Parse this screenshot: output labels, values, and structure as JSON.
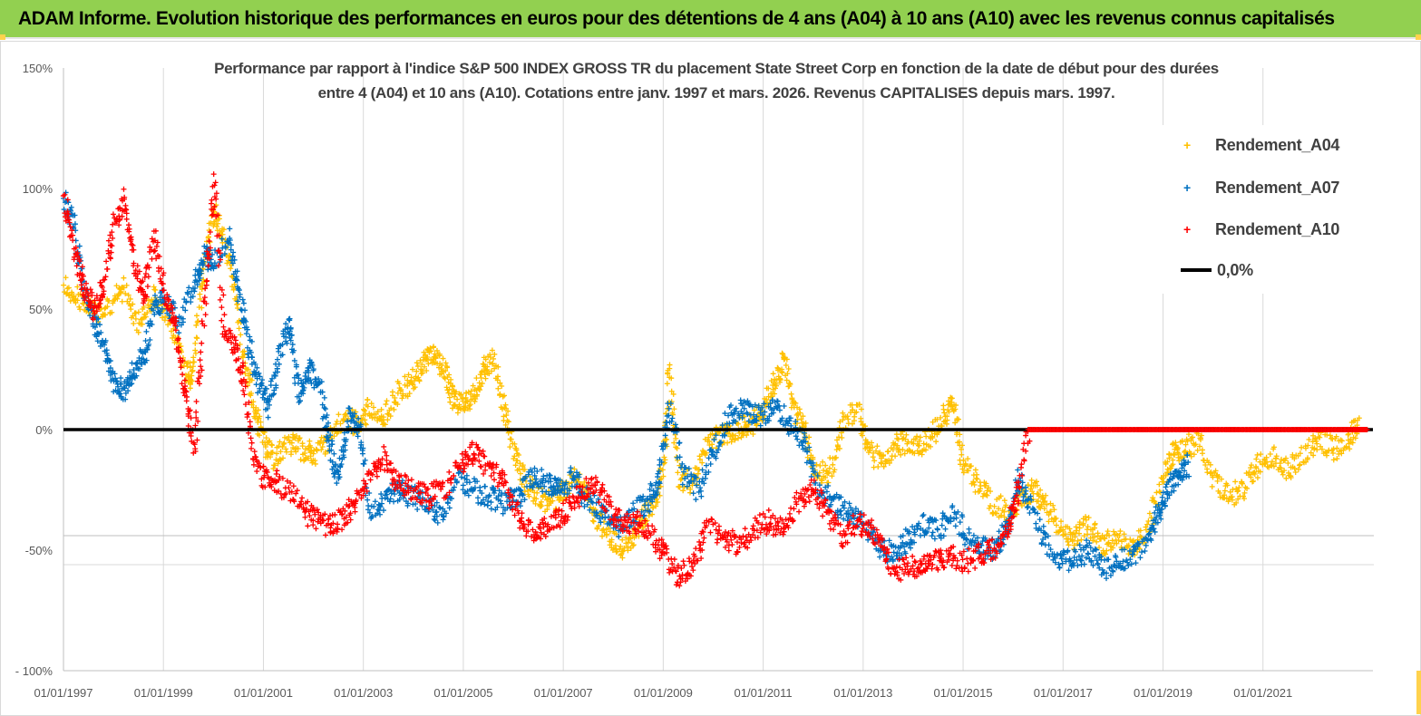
{
  "header": {
    "title": "ADAM Informe. Evolution historique des performances en euros pour des détentions de 4 ans (A04) à 10 ans (A10) avec les revenus connus capitalisés"
  },
  "colors": {
    "header_bg": "#92d050",
    "A04": "#ffc000",
    "A07": "#0070c0",
    "A10": "#ff0000",
    "zero_line": "#000000"
  },
  "chart_data": {
    "type": "scatter",
    "title_line1": "Performance par rapport à l'indice S&P 500 INDEX GROSS TR  du placement State Street Corp en fonction de la date de début pour des durées",
    "title_line2": "entre 4 (A04) et 10 ans (A10). Cotations entre janv. 1997 et mars. 2026. Revenus CAPITALISES depuis mars. 1997.",
    "ylim": [
      -100,
      150
    ],
    "y_ticks": [
      "150%",
      "100%",
      "50%",
      "0%",
      "-50%",
      "- 100%"
    ],
    "y_tick_values": [
      150,
      100,
      50,
      0,
      -50,
      -100
    ],
    "x_ticks": [
      "01/01/1997",
      "01/01/1999",
      "01/01/2001",
      "01/01/2003",
      "01/01/2005",
      "01/01/2007",
      "01/01/2009",
      "01/01/2011",
      "01/01/2013",
      "01/01/2015",
      "01/01/2017",
      "01/01/2019",
      "01/01/2021"
    ],
    "x_tick_years": [
      1997,
      1999,
      2001,
      2003,
      2005,
      2007,
      2009,
      2011,
      2013,
      2015,
      2017,
      2019,
      2021
    ],
    "xlim": [
      1997.0,
      2023.2
    ],
    "grid": true,
    "legend_position": "top-right",
    "series": [
      {
        "name": "Rendement_A04",
        "key": "A04",
        "points": [
          [
            1997.0,
            60
          ],
          [
            1997.3,
            55
          ],
          [
            1997.6,
            48
          ],
          [
            1997.9,
            52
          ],
          [
            1998.2,
            58
          ],
          [
            1998.5,
            45
          ],
          [
            1998.8,
            55
          ],
          [
            1999.1,
            48
          ],
          [
            1999.3,
            35
          ],
          [
            1999.5,
            20
          ],
          [
            1999.6,
            30
          ],
          [
            1999.8,
            70
          ],
          [
            2000.0,
            90
          ],
          [
            2000.2,
            80
          ],
          [
            2000.4,
            60
          ],
          [
            2000.6,
            30
          ],
          [
            2000.8,
            10
          ],
          [
            2001.0,
            -5
          ],
          [
            2001.2,
            -12
          ],
          [
            2001.5,
            -5
          ],
          [
            2001.8,
            -8
          ],
          [
            2002.0,
            -10
          ],
          [
            2002.3,
            -5
          ],
          [
            2002.6,
            5
          ],
          [
            2002.9,
            2
          ],
          [
            2003.1,
            8
          ],
          [
            2003.4,
            5
          ],
          [
            2003.7,
            15
          ],
          [
            2004.0,
            20
          ],
          [
            2004.2,
            28
          ],
          [
            2004.4,
            32
          ],
          [
            2004.6,
            25
          ],
          [
            2004.8,
            12
          ],
          [
            2005.0,
            10
          ],
          [
            2005.2,
            15
          ],
          [
            2005.4,
            25
          ],
          [
            2005.6,
            30
          ],
          [
            2005.8,
            10
          ],
          [
            2006.0,
            -10
          ],
          [
            2006.2,
            -20
          ],
          [
            2006.5,
            -28
          ],
          [
            2006.8,
            -30
          ],
          [
            2007.0,
            -25
          ],
          [
            2007.3,
            -20
          ],
          [
            2007.6,
            -35
          ],
          [
            2007.9,
            -45
          ],
          [
            2008.2,
            -50
          ],
          [
            2008.5,
            -40
          ],
          [
            2008.8,
            -30
          ],
          [
            2009.0,
            -15
          ],
          [
            2009.1,
            25
          ],
          [
            2009.3,
            -20
          ],
          [
            2009.6,
            -22
          ],
          [
            2009.9,
            -5
          ],
          [
            2010.2,
            -2
          ],
          [
            2010.5,
            0
          ],
          [
            2010.8,
            3
          ],
          [
            2011.0,
            8
          ],
          [
            2011.2,
            18
          ],
          [
            2011.4,
            28
          ],
          [
            2011.6,
            10
          ],
          [
            2011.8,
            0
          ],
          [
            2012.0,
            -15
          ],
          [
            2012.3,
            -20
          ],
          [
            2012.6,
            5
          ],
          [
            2012.9,
            8
          ],
          [
            2013.1,
            -10
          ],
          [
            2013.4,
            -12
          ],
          [
            2013.7,
            -5
          ],
          [
            2014.0,
            -8
          ],
          [
            2014.3,
            -5
          ],
          [
            2014.6,
            5
          ],
          [
            2014.8,
            10
          ],
          [
            2015.0,
            -15
          ],
          [
            2015.3,
            -22
          ],
          [
            2015.6,
            -30
          ],
          [
            2015.9,
            -35
          ],
          [
            2016.2,
            -28
          ],
          [
            2016.4,
            -25
          ],
          [
            2016.6,
            -30
          ],
          [
            2016.9,
            -40
          ],
          [
            2017.2,
            -45
          ],
          [
            2017.5,
            -40
          ],
          [
            2017.8,
            -48
          ],
          [
            2018.1,
            -45
          ],
          [
            2018.4,
            -50
          ],
          [
            2018.7,
            -40
          ],
          [
            2019.0,
            -20
          ],
          [
            2019.2,
            -10
          ],
          [
            2019.4,
            -8
          ],
          [
            2019.7,
            -5
          ],
          [
            2020.0,
            -20
          ],
          [
            2020.3,
            -28
          ],
          [
            2020.6,
            -25
          ],
          [
            2020.9,
            -15
          ],
          [
            2021.2,
            -10
          ],
          [
            2021.5,
            -18
          ],
          [
            2021.8,
            -10
          ],
          [
            2022.1,
            -5
          ],
          [
            2022.4,
            -8
          ],
          [
            2022.7,
            -5
          ],
          [
            2022.9,
            2
          ]
        ]
      },
      {
        "name": "Rendement_A07",
        "key": "A07",
        "points": [
          [
            1997.0,
            95
          ],
          [
            1997.2,
            85
          ],
          [
            1997.4,
            60
          ],
          [
            1997.6,
            45
          ],
          [
            1997.8,
            35
          ],
          [
            1998.0,
            20
          ],
          [
            1998.2,
            15
          ],
          [
            1998.4,
            25
          ],
          [
            1998.6,
            30
          ],
          [
            1998.8,
            50
          ],
          [
            1999.0,
            55
          ],
          [
            1999.3,
            45
          ],
          [
            1999.6,
            60
          ],
          [
            1999.8,
            72
          ],
          [
            2000.0,
            70
          ],
          [
            2000.3,
            80
          ],
          [
            2000.5,
            55
          ],
          [
            2000.7,
            35
          ],
          [
            2000.9,
            20
          ],
          [
            2001.1,
            10
          ],
          [
            2001.3,
            30
          ],
          [
            2001.5,
            45
          ],
          [
            2001.7,
            15
          ],
          [
            2001.9,
            25
          ],
          [
            2002.1,
            20
          ],
          [
            2002.3,
            -5
          ],
          [
            2002.5,
            -20
          ],
          [
            2002.7,
            5
          ],
          [
            2002.9,
            2
          ],
          [
            2003.1,
            -35
          ],
          [
            2003.4,
            -30
          ],
          [
            2003.7,
            -25
          ],
          [
            2004.0,
            -28
          ],
          [
            2004.3,
            -32
          ],
          [
            2004.6,
            -35
          ],
          [
            2004.9,
            -20
          ],
          [
            2005.2,
            -25
          ],
          [
            2005.5,
            -28
          ],
          [
            2005.8,
            -30
          ],
          [
            2006.1,
            -28
          ],
          [
            2006.4,
            -20
          ],
          [
            2006.7,
            -22
          ],
          [
            2006.9,
            -25
          ],
          [
            2007.2,
            -20
          ],
          [
            2007.5,
            -30
          ],
          [
            2007.8,
            -35
          ],
          [
            2008.1,
            -40
          ],
          [
            2008.4,
            -35
          ],
          [
            2008.7,
            -30
          ],
          [
            2008.9,
            -20
          ],
          [
            2009.1,
            10
          ],
          [
            2009.4,
            -18
          ],
          [
            2009.7,
            -25
          ],
          [
            2010.0,
            -10
          ],
          [
            2010.3,
            5
          ],
          [
            2010.6,
            8
          ],
          [
            2010.9,
            5
          ],
          [
            2011.2,
            10
          ],
          [
            2011.5,
            3
          ],
          [
            2011.8,
            -5
          ],
          [
            2012.1,
            -25
          ],
          [
            2012.4,
            -30
          ],
          [
            2012.7,
            -35
          ],
          [
            2013.0,
            -40
          ],
          [
            2013.3,
            -48
          ],
          [
            2013.6,
            -52
          ],
          [
            2013.9,
            -45
          ],
          [
            2014.2,
            -40
          ],
          [
            2014.5,
            -42
          ],
          [
            2014.8,
            -35
          ],
          [
            2015.1,
            -45
          ],
          [
            2015.4,
            -50
          ],
          [
            2015.7,
            -48
          ],
          [
            2015.9,
            -40
          ],
          [
            2016.1,
            -20
          ],
          [
            2016.3,
            -30
          ],
          [
            2016.6,
            -45
          ],
          [
            2016.9,
            -52
          ],
          [
            2017.2,
            -55
          ],
          [
            2017.5,
            -50
          ],
          [
            2017.8,
            -58
          ],
          [
            2018.1,
            -55
          ],
          [
            2018.4,
            -52
          ],
          [
            2018.7,
            -45
          ],
          [
            2018.9,
            -35
          ],
          [
            2019.1,
            -25
          ],
          [
            2019.3,
            -18
          ],
          [
            2019.5,
            -15
          ]
        ]
      },
      {
        "name": "Rendement_A10",
        "key": "A10",
        "points": [
          [
            1997.0,
            98
          ],
          [
            1997.2,
            75
          ],
          [
            1997.4,
            60
          ],
          [
            1997.6,
            50
          ],
          [
            1997.8,
            60
          ],
          [
            1998.0,
            85
          ],
          [
            1998.2,
            95
          ],
          [
            1998.4,
            70
          ],
          [
            1998.6,
            55
          ],
          [
            1998.8,
            80
          ],
          [
            1999.0,
            60
          ],
          [
            1999.2,
            45
          ],
          [
            1999.4,
            20
          ],
          [
            1999.6,
            -10
          ],
          [
            1999.8,
            50
          ],
          [
            2000.0,
            105
          ],
          [
            2000.2,
            40
          ],
          [
            2000.4,
            35
          ],
          [
            2000.6,
            20
          ],
          [
            2000.8,
            -10
          ],
          [
            2001.0,
            -20
          ],
          [
            2001.3,
            -22
          ],
          [
            2001.6,
            -28
          ],
          [
            2001.9,
            -35
          ],
          [
            2002.2,
            -40
          ],
          [
            2002.5,
            -38
          ],
          [
            2002.8,
            -32
          ],
          [
            2003.1,
            -20
          ],
          [
            2003.4,
            -12
          ],
          [
            2003.7,
            -22
          ],
          [
            2004.0,
            -25
          ],
          [
            2004.3,
            -28
          ],
          [
            2004.6,
            -25
          ],
          [
            2004.9,
            -15
          ],
          [
            2005.2,
            -10
          ],
          [
            2005.5,
            -15
          ],
          [
            2005.8,
            -22
          ],
          [
            2006.1,
            -35
          ],
          [
            2006.4,
            -45
          ],
          [
            2006.7,
            -40
          ],
          [
            2007.0,
            -35
          ],
          [
            2007.3,
            -28
          ],
          [
            2007.6,
            -22
          ],
          [
            2007.9,
            -32
          ],
          [
            2008.2,
            -40
          ],
          [
            2008.5,
            -38
          ],
          [
            2008.8,
            -45
          ],
          [
            2009.0,
            -50
          ],
          [
            2009.3,
            -62
          ],
          [
            2009.6,
            -55
          ],
          [
            2009.9,
            -40
          ],
          [
            2010.2,
            -45
          ],
          [
            2010.5,
            -48
          ],
          [
            2010.8,
            -42
          ],
          [
            2011.1,
            -38
          ],
          [
            2011.4,
            -42
          ],
          [
            2011.7,
            -30
          ],
          [
            2012.0,
            -25
          ],
          [
            2012.3,
            -35
          ],
          [
            2012.6,
            -45
          ],
          [
            2012.9,
            -38
          ],
          [
            2013.2,
            -42
          ],
          [
            2013.5,
            -55
          ],
          [
            2013.8,
            -58
          ],
          [
            2014.1,
            -56
          ],
          [
            2014.4,
            -54
          ],
          [
            2014.7,
            -52
          ],
          [
            2015.0,
            -55
          ],
          [
            2015.3,
            -52
          ],
          [
            2015.6,
            -50
          ],
          [
            2015.9,
            -40
          ],
          [
            2016.1,
            -25
          ],
          [
            2016.3,
            0
          ],
          [
            2016.8,
            0
          ],
          [
            2017.3,
            0
          ],
          [
            2017.8,
            0
          ],
          [
            2018.3,
            0
          ],
          [
            2018.8,
            0
          ],
          [
            2019.3,
            0
          ],
          [
            2019.8,
            0
          ],
          [
            2020.3,
            0
          ],
          [
            2020.8,
            0
          ],
          [
            2021.3,
            0
          ],
          [
            2021.8,
            0
          ],
          [
            2022.3,
            0
          ],
          [
            2022.8,
            0
          ],
          [
            2023.1,
            0
          ]
        ]
      },
      {
        "name": "0,0%",
        "key": "zero",
        "type": "line",
        "y": 0
      }
    ]
  }
}
